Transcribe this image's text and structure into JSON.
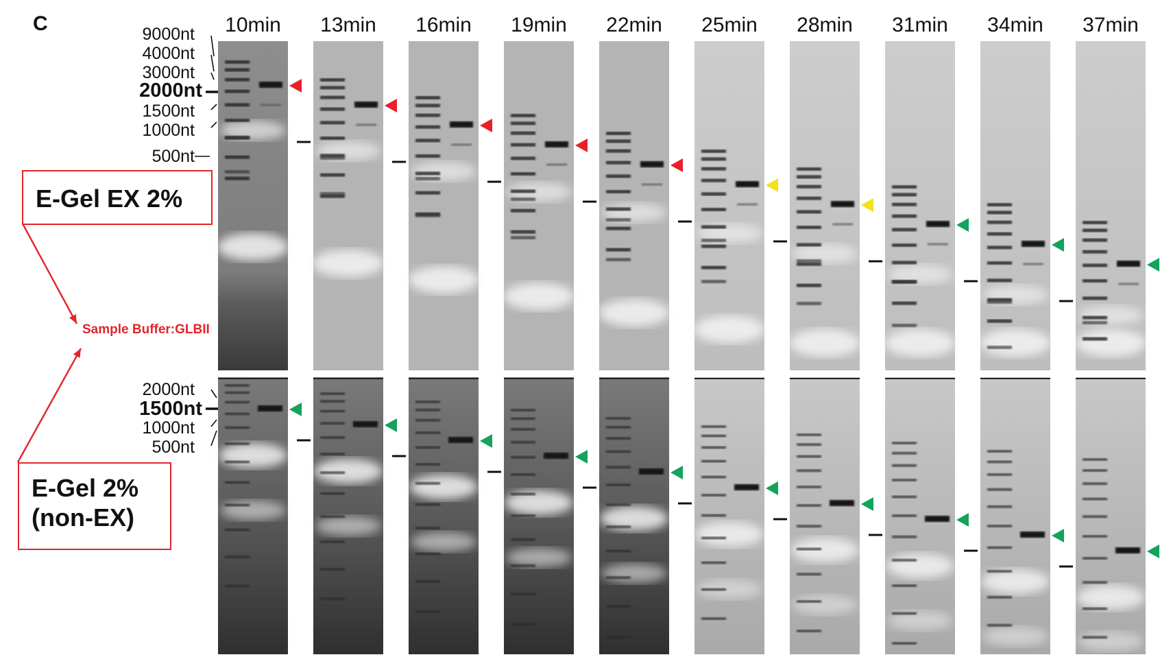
{
  "panel_label": "C",
  "time_points": [
    "10min",
    "13min",
    "16min",
    "19min",
    "22min",
    "25min",
    "28min",
    "31min",
    "34min",
    "37min"
  ],
  "top_gel": {
    "label": "E-Gel EX 2%",
    "ladder_markers": [
      {
        "text": "9000nt",
        "bold": false
      },
      {
        "text": "4000nt",
        "bold": false
      },
      {
        "text": "3000nt",
        "bold": false
      },
      {
        "text": "2000nt",
        "bold": true
      },
      {
        "text": "1500nt",
        "bold": false
      },
      {
        "text": "1000nt",
        "bold": false
      },
      {
        "text": "500nt",
        "bold": false
      }
    ],
    "arrow_colors": [
      "red",
      "red",
      "red",
      "red",
      "red",
      "yellow",
      "yellow",
      "green",
      "green",
      "green"
    ]
  },
  "bottom_gel": {
    "label_line1": "E-Gel 2%",
    "label_line2": "(non-EX)",
    "ladder_markers": [
      {
        "text": "2000nt",
        "bold": false
      },
      {
        "text": "1500nt",
        "bold": true
      },
      {
        "text": "1000nt",
        "bold": false
      },
      {
        "text": "500nt",
        "bold": false
      }
    ],
    "arrow_colors": [
      "green",
      "green",
      "green",
      "green",
      "green",
      "green",
      "green",
      "green",
      "green",
      "green"
    ]
  },
  "sample_buffer_label": "Sample Buffer:GLBII",
  "colors": {
    "red": "#e8202a",
    "yellow": "#f4e21a",
    "green": "#14a35a",
    "box": "#e0262a"
  }
}
